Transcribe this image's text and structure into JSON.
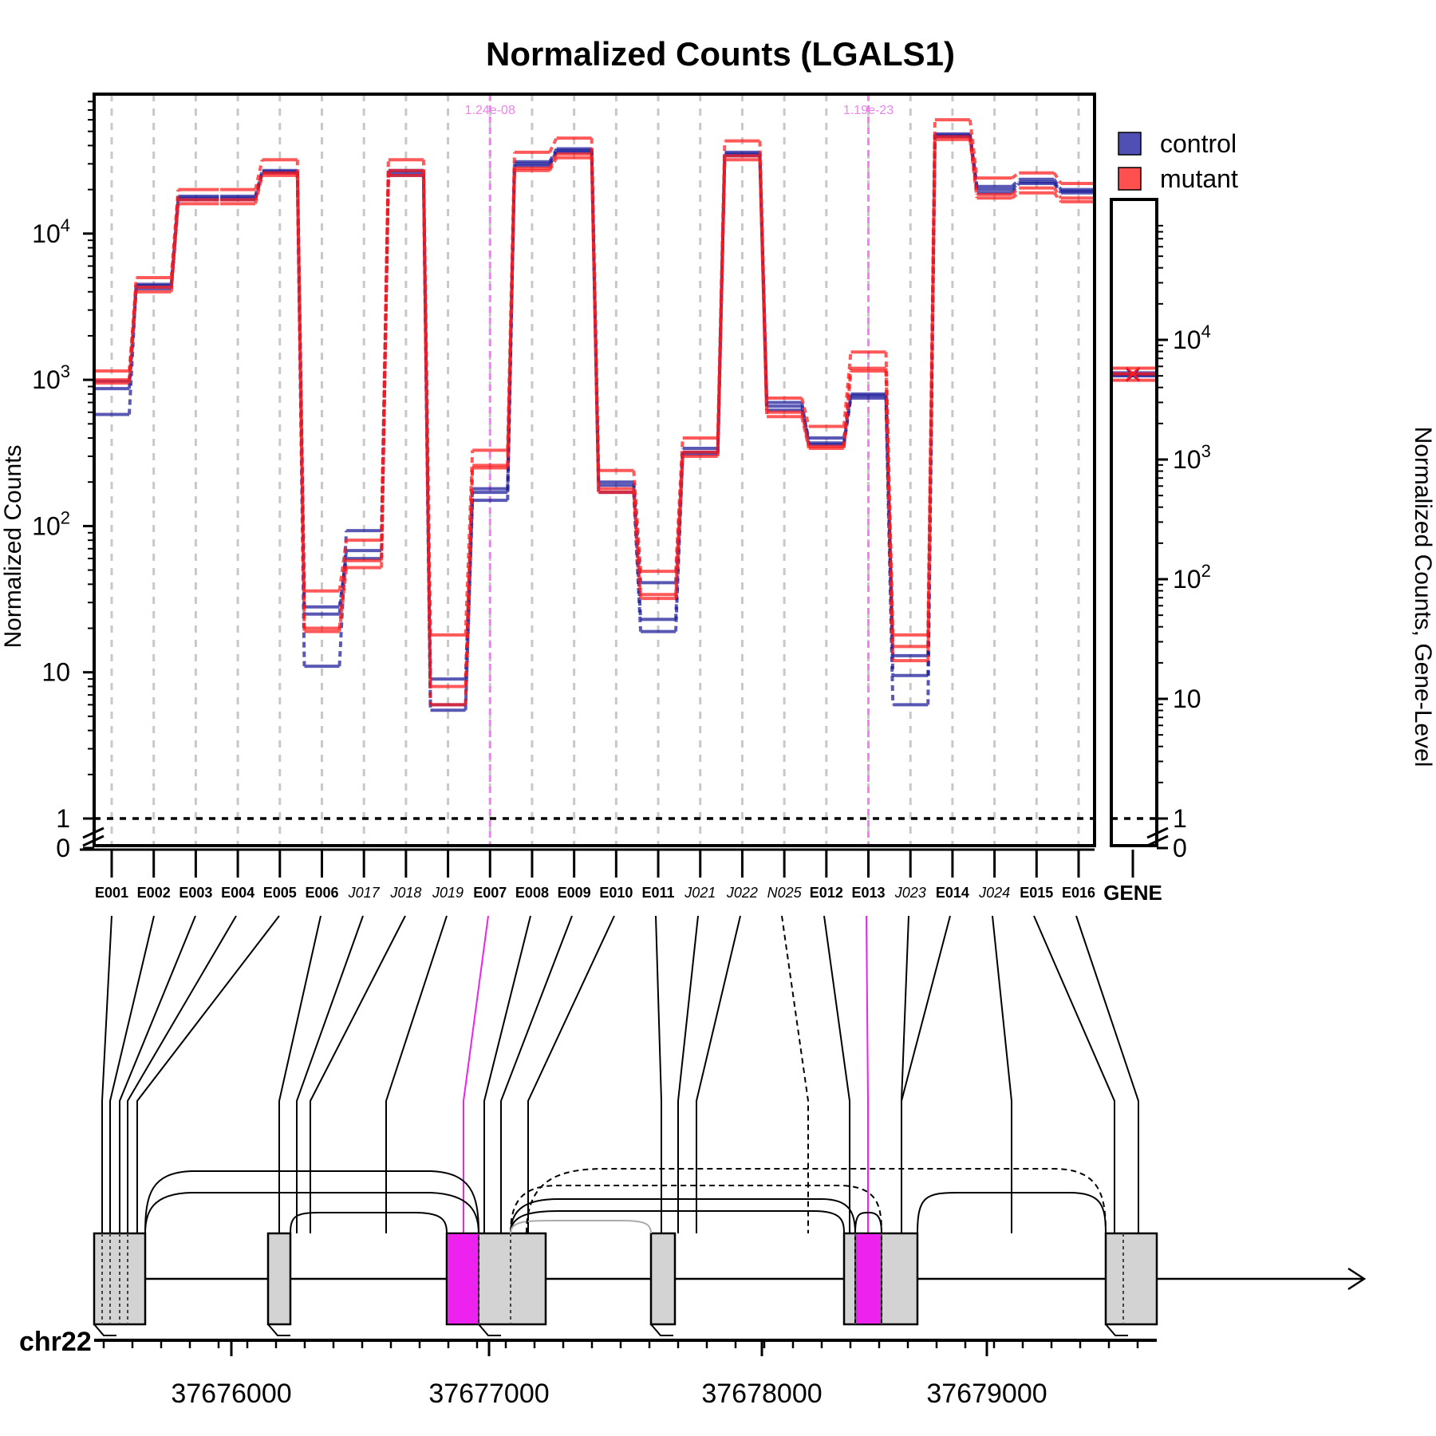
{
  "colors": {
    "control": "#1a1a99",
    "mutant": "#ff1a1a",
    "control_legend": "#5050b4",
    "mutant_legend": "#ff5050",
    "highlight": "#ee22ee",
    "highlight_line": "#ee82ee",
    "grid": "#c8c8c8",
    "exon_fill": "#d3d3d3",
    "axis": "#000000"
  },
  "chart_data": {
    "type": "line",
    "title": "Normalized Counts (LGALS1)",
    "ylabel": "Normalized Counts",
    "ylabel_right": "Normalized Counts, Gene-Level",
    "y_scale": "log",
    "y_ticks": [
      "0",
      "1",
      "10",
      "10^2",
      "10^3",
      "10^4"
    ],
    "y_right_ticks": [
      "0",
      "1",
      "10",
      "10^2",
      "10^3",
      "10^4"
    ],
    "reference_line": 1,
    "grid": true,
    "legend_position": "top-right",
    "legend": [
      {
        "name": "control",
        "color": "#5050b4"
      },
      {
        "name": "mutant",
        "color": "#ff5050"
      }
    ],
    "categories": [
      "E001",
      "E002",
      "E003",
      "E004",
      "E005",
      "E006",
      "J017",
      "J018",
      "J019",
      "E007",
      "E008",
      "E009",
      "E010",
      "E011",
      "J021",
      "J022",
      "N025",
      "E012",
      "E013",
      "J023",
      "E014",
      "J024",
      "E015",
      "E016"
    ],
    "category_kinds": [
      "exon",
      "exon",
      "exon",
      "exon",
      "exon",
      "exon",
      "junction",
      "junction",
      "junction",
      "exon",
      "exon",
      "exon",
      "exon",
      "exon",
      "junction",
      "junction",
      "novel",
      "exon",
      "exon",
      "junction",
      "exon",
      "junction",
      "exon",
      "exon"
    ],
    "significant": [
      {
        "feature": "E007",
        "pvalue": "1.24e-08"
      },
      {
        "feature": "E013",
        "pvalue": "1.19e-23"
      }
    ],
    "series": [
      {
        "name": "control",
        "group": "control",
        "values": [
          580,
          4500,
          17000,
          17000,
          26000,
          11,
          93,
          25000,
          5.5,
          150,
          29000,
          37000,
          170,
          19,
          310,
          34000,
          700,
          360,
          750,
          6,
          46000,
          19000,
          22000,
          19000
        ]
      },
      {
        "name": "control",
        "group": "control",
        "values": [
          870,
          4200,
          17500,
          17500,
          26500,
          25,
          68,
          26000,
          6,
          170,
          30000,
          36000,
          190,
          23,
          320,
          35000,
          660,
          370,
          780,
          9.5,
          47000,
          20000,
          22500,
          19500
        ]
      },
      {
        "name": "control",
        "group": "control",
        "values": [
          980,
          4400,
          18000,
          18000,
          27000,
          28,
          60,
          27000,
          9,
          180,
          31000,
          38000,
          200,
          41,
          340,
          36000,
          620,
          400,
          800,
          13,
          48000,
          21000,
          23500,
          20000
        ]
      },
      {
        "name": "mutant",
        "group": "mutant",
        "values": [
          1000,
          4000,
          16000,
          16000,
          25000,
          19,
          52,
          25000,
          6,
          260,
          27000,
          33000,
          180,
          32,
          300,
          32000,
          560,
          340,
          1150,
          12,
          44000,
          17500,
          19000,
          16500
        ]
      },
      {
        "name": "mutant",
        "group": "mutant",
        "values": [
          1150,
          4300,
          17000,
          17000,
          26000,
          20,
          58,
          27000,
          8,
          250,
          28000,
          35000,
          170,
          34,
          320,
          34000,
          600,
          350,
          1200,
          15,
          46000,
          18500,
          20500,
          17500
        ]
      },
      {
        "name": "mutant",
        "group": "mutant",
        "values": [
          950,
          5000,
          20000,
          20000,
          32000,
          36,
          80,
          32000,
          18,
          330,
          36000,
          45000,
          240,
          49,
          400,
          43000,
          750,
          480,
          1550,
          18,
          60000,
          24000,
          26000,
          22000
        ]
      }
    ],
    "gene_level": [
      {
        "group": "control",
        "values": [
          5000,
          5100,
          5300
        ]
      },
      {
        "group": "mutant",
        "values": [
          4600,
          5200,
          5800
        ]
      }
    ],
    "gene_label": "GENE",
    "chromosome": "chr22",
    "genomic_ticks": [
      "37676000",
      "37677000",
      "37678000",
      "37679000"
    ]
  }
}
